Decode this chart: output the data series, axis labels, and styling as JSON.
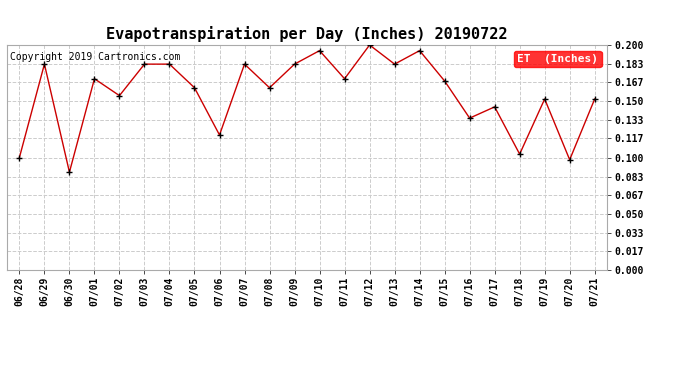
{
  "title": "Evapotranspiration per Day (Inches) 20190722",
  "copyright": "Copyright 2019 Cartronics.com",
  "legend_label": "ET  (Inches)",
  "legend_bg": "#ff0000",
  "legend_text_color": "#ffffff",
  "dates": [
    "06/28",
    "06/29",
    "06/30",
    "07/01",
    "07/02",
    "07/03",
    "07/04",
    "07/05",
    "07/06",
    "07/07",
    "07/08",
    "07/09",
    "07/10",
    "07/11",
    "07/12",
    "07/13",
    "07/14",
    "07/15",
    "07/16",
    "07/17",
    "07/18",
    "07/19",
    "07/20",
    "07/21"
  ],
  "values": [
    0.1,
    0.183,
    0.087,
    0.17,
    0.155,
    0.183,
    0.183,
    0.162,
    0.12,
    0.183,
    0.162,
    0.183,
    0.195,
    0.17,
    0.2,
    0.183,
    0.195,
    0.168,
    0.135,
    0.145,
    0.103,
    0.152,
    0.098,
    0.152
  ],
  "line_color": "#cc0000",
  "marker_color": "#000000",
  "marker_style": "+",
  "marker_size": 5,
  "ylim": [
    0.0,
    0.2
  ],
  "yticks": [
    0.0,
    0.017,
    0.033,
    0.05,
    0.067,
    0.083,
    0.1,
    0.117,
    0.133,
    0.15,
    0.167,
    0.183,
    0.2
  ],
  "grid_color": "#cccccc",
  "grid_style": "--",
  "bg_color": "#ffffff",
  "title_fontsize": 11,
  "copyright_fontsize": 7,
  "tick_fontsize": 7,
  "legend_fontsize": 8,
  "fig_width": 6.9,
  "fig_height": 3.75,
  "fig_dpi": 100
}
